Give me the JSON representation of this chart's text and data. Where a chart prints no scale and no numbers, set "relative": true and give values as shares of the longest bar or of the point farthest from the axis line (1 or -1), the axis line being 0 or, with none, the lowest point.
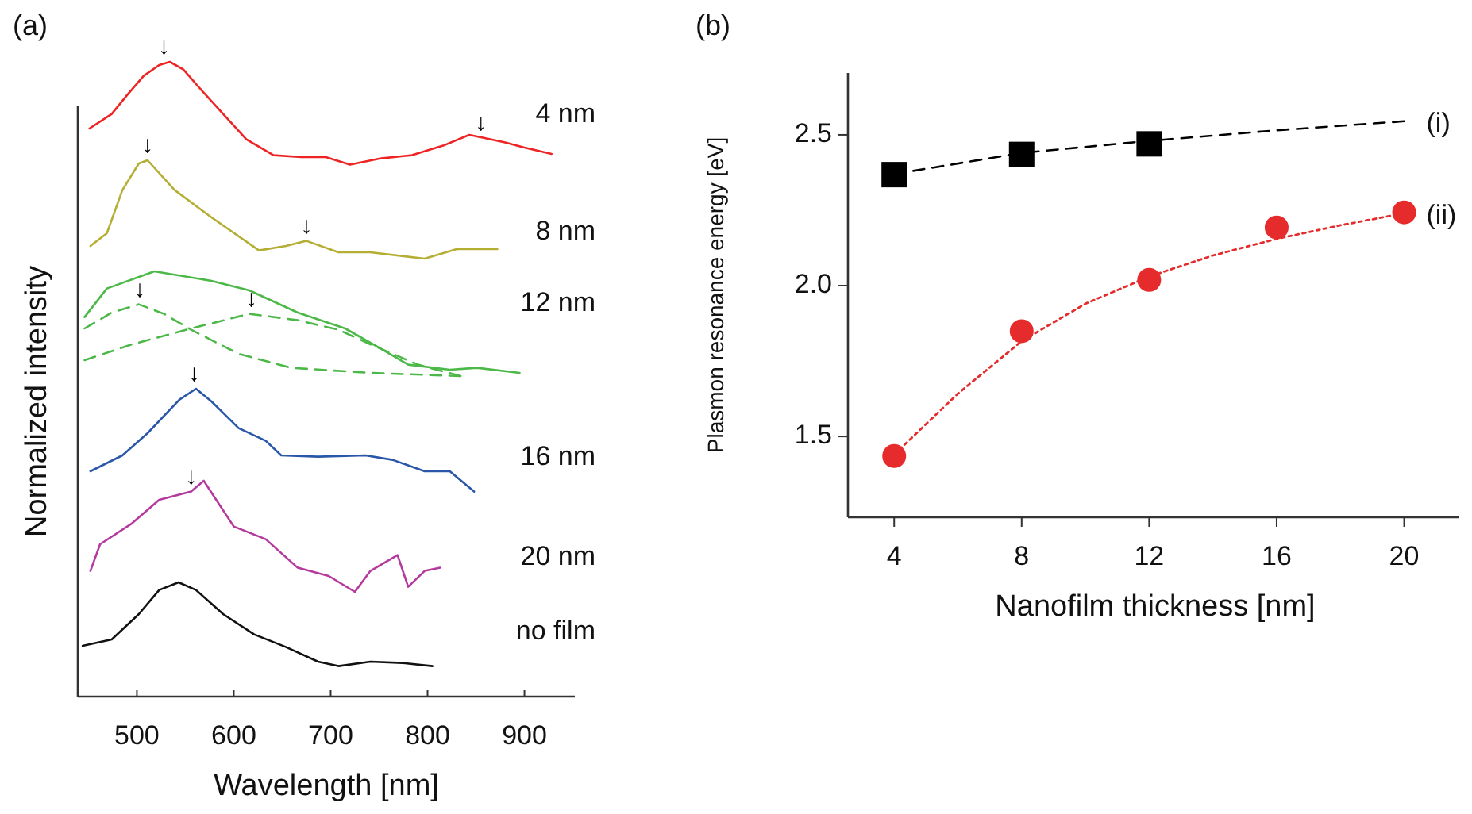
{
  "chart_data": [
    {
      "type": "line",
      "title": "(a)",
      "xlabel": "Wavelength [nm]",
      "ylabel": "Normalized intensity",
      "relative": true,
      "xlim": [
        439,
        952
      ],
      "xticks": [
        500,
        600,
        700,
        800,
        900
      ],
      "series": [
        {
          "name": "4 nm",
          "color": "#ee2424",
          "x": [
            451,
            474,
            490,
            507,
            523,
            534,
            548,
            564,
            589,
            613,
            641,
            670,
            695,
            720,
            752,
            784,
            816,
            843,
            859,
            880,
            900,
            928
          ],
          "values": [
            0.895,
            0.918,
            0.948,
            0.978,
            0.995,
            1.0,
            0.988,
            0.96,
            0.918,
            0.878,
            0.853,
            0.85,
            0.85,
            0.838,
            0.848,
            0.853,
            0.868,
            0.885,
            0.88,
            0.873,
            0.865,
            0.855
          ]
        },
        {
          "name": "8 nm",
          "color": "#b5ae35",
          "x": [
            452,
            469,
            485,
            502,
            511,
            539,
            577,
            626,
            654,
            675,
            708,
            741,
            797,
            830,
            872
          ],
          "values": [
            0.71,
            0.73,
            0.798,
            0.84,
            0.845,
            0.798,
            0.755,
            0.703,
            0.71,
            0.718,
            0.7,
            0.7,
            0.69,
            0.705,
            0.705
          ]
        },
        {
          "name": "12 nm",
          "color": "#4cb848",
          "x": [
            446,
            469,
            518,
            577,
            616,
            666,
            715,
            752,
            780,
            823,
            851,
            895
          ],
          "values": [
            0.598,
            0.643,
            0.67,
            0.655,
            0.64,
            0.605,
            0.58,
            0.548,
            0.523,
            0.515,
            0.518,
            0.51
          ]
        },
        {
          "color": "#4cb848",
          "line_style": "dashed",
          "x": [
            446,
            474,
            502,
            528,
            556,
            605,
            659,
            741,
            834
          ],
          "values": [
            0.58,
            0.605,
            0.618,
            0.603,
            0.578,
            0.54,
            0.518,
            0.51,
            0.505
          ]
        },
        {
          "color": "#4cb848",
          "line_style": "dashed",
          "x": [
            446,
            495,
            556,
            616,
            666,
            708,
            741,
            790,
            834
          ],
          "values": [
            0.53,
            0.555,
            0.58,
            0.603,
            0.593,
            0.578,
            0.555,
            0.523,
            0.505
          ]
        },
        {
          "name": "16 nm",
          "color": "#2a57a8",
          "x": [
            452,
            485,
            511,
            544,
            561,
            577,
            605,
            633,
            649,
            687,
            736,
            764,
            797,
            823,
            848
          ],
          "values": [
            0.355,
            0.38,
            0.415,
            0.468,
            0.485,
            0.465,
            0.423,
            0.403,
            0.38,
            0.378,
            0.38,
            0.373,
            0.355,
            0.355,
            0.323
          ]
        },
        {
          "name": "20 nm",
          "color": "#b43a9e",
          "x": [
            452,
            462,
            495,
            523,
            556,
            569,
            584,
            600,
            633,
            666,
            698,
            725,
            741,
            769,
            780,
            797,
            813
          ],
          "values": [
            0.198,
            0.24,
            0.273,
            0.31,
            0.323,
            0.34,
            0.305,
            0.268,
            0.248,
            0.203,
            0.19,
            0.165,
            0.198,
            0.223,
            0.173,
            0.198,
            0.203
          ]
        },
        {
          "name": "no film",
          "color": "#111111",
          "x": [
            444,
            474,
            502,
            523,
            543,
            561,
            589,
            621,
            654,
            687,
            708,
            741,
            774,
            805
          ],
          "values": [
            0.08,
            0.09,
            0.13,
            0.168,
            0.18,
            0.168,
            0.13,
            0.098,
            0.078,
            0.055,
            0.048,
            0.055,
            0.053,
            0.048
          ]
        }
      ],
      "annotations": [
        {
          "text": "↓",
          "x": 528,
          "y": 1.0
        },
        {
          "text": "↓",
          "x": 855,
          "y": 0.88
        },
        {
          "text": "↓",
          "x": 511,
          "y": 0.845
        },
        {
          "text": "↓",
          "x": 675,
          "y": 0.718
        },
        {
          "text": "↓",
          "x": 503,
          "y": 0.618
        },
        {
          "text": "↓",
          "x": 618,
          "y": 0.603
        },
        {
          "text": "↓",
          "x": 559,
          "y": 0.485
        },
        {
          "text": "↓",
          "x": 556,
          "y": 0.323
        }
      ]
    },
    {
      "type": "scatter",
      "title": "(b)",
      "xlabel": "Nanofilm thickness [nm]",
      "ylabel": "Plasmon resonance energy [eV]",
      "xlim": [
        2.55,
        21.83
      ],
      "xticks": [
        4,
        8,
        12,
        16,
        20
      ],
      "ylim": [
        1.232,
        2.705
      ],
      "yticks": [
        {
          "value": 1.5,
          "label": "1.5"
        },
        {
          "value": 2.0,
          "label": "2.0"
        },
        2.5
      ],
      "series": [
        {
          "color": "#000000",
          "marker": "square",
          "x": [
            4,
            8,
            12
          ],
          "values": [
            2.368,
            2.435,
            2.47
          ]
        },
        {
          "color": "#e52b2b",
          "marker": "circle",
          "x": [
            4,
            8,
            12,
            16,
            20
          ],
          "values": [
            1.435,
            1.849,
            2.019,
            2.193,
            2.243
          ]
        },
        {
          "type": "line",
          "name": "(i)",
          "color": "#000000",
          "line_style": "dashed",
          "x": [
            4,
            8,
            12,
            16,
            20
          ],
          "values": [
            2.37,
            2.44,
            2.48,
            2.515,
            2.545
          ]
        },
        {
          "type": "line",
          "name": "(ii)",
          "color": "#e52b2b",
          "line_style": "dotted",
          "x": [
            4,
            6,
            8,
            10,
            12,
            14,
            16,
            18,
            20
          ],
          "values": [
            1.44,
            1.642,
            1.816,
            1.94,
            2.03,
            2.1,
            2.155,
            2.2,
            2.24
          ]
        }
      ]
    }
  ]
}
